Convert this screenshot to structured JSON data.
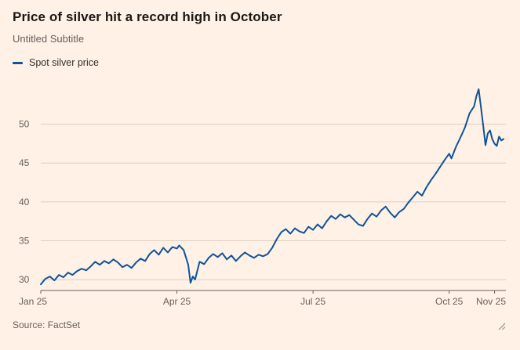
{
  "chart_data": {
    "type": "line",
    "title": "Price of silver hit a record high in October",
    "subtitle": "Untitled Subtitle",
    "source": "Source: FactSet",
    "xlabel": "",
    "ylabel": "",
    "grid": "horizontal",
    "legend_position": "top-left",
    "xlim": [
      0,
      10.25
    ],
    "ylim": [
      28.6,
      55.4
    ],
    "y_ticks": [
      30,
      35,
      40,
      45,
      50
    ],
    "x_ticks": [
      {
        "pos": 0,
        "label": "Jan 25"
      },
      {
        "pos": 3,
        "label": "Apr 25"
      },
      {
        "pos": 6,
        "label": "Jul 25"
      },
      {
        "pos": 9,
        "label": "Oct 25"
      },
      {
        "pos": 10,
        "label": "Nov 25"
      }
    ],
    "colors": {
      "background": "#FFF1E5",
      "grid": "#DCCEC0",
      "axis": "#66605C",
      "axis_text": "#66605C",
      "title_text": "#1A1817"
    },
    "series": [
      {
        "name": "Spot silver price",
        "color": "#0F5499",
        "x": [
          0.0,
          0.1,
          0.2,
          0.3,
          0.4,
          0.5,
          0.6,
          0.7,
          0.8,
          0.9,
          1.0,
          1.1,
          1.2,
          1.3,
          1.4,
          1.5,
          1.6,
          1.7,
          1.8,
          1.9,
          2.0,
          2.1,
          2.2,
          2.3,
          2.4,
          2.5,
          2.6,
          2.7,
          2.8,
          2.9,
          3.0,
          3.05,
          3.15,
          3.25,
          3.3,
          3.35,
          3.4,
          3.5,
          3.6,
          3.7,
          3.8,
          3.9,
          4.0,
          4.1,
          4.2,
          4.3,
          4.4,
          4.5,
          4.6,
          4.7,
          4.8,
          4.9,
          5.0,
          5.1,
          5.2,
          5.3,
          5.4,
          5.5,
          5.6,
          5.7,
          5.8,
          5.9,
          6.0,
          6.1,
          6.2,
          6.3,
          6.4,
          6.5,
          6.6,
          6.7,
          6.8,
          6.9,
          7.0,
          7.1,
          7.2,
          7.3,
          7.4,
          7.5,
          7.6,
          7.7,
          7.8,
          7.9,
          8.0,
          8.1,
          8.2,
          8.3,
          8.4,
          8.5,
          8.6,
          8.7,
          8.8,
          8.9,
          9.0,
          9.05,
          9.15,
          9.25,
          9.35,
          9.45,
          9.55,
          9.6,
          9.65,
          9.7,
          9.75,
          9.8,
          9.85,
          9.9,
          9.95,
          10.0,
          10.05,
          10.1,
          10.15,
          10.2
        ],
        "values": [
          29.4,
          30.1,
          30.4,
          29.9,
          30.6,
          30.3,
          30.9,
          30.6,
          31.1,
          31.4,
          31.2,
          31.7,
          32.3,
          31.9,
          32.4,
          32.1,
          32.6,
          32.2,
          31.6,
          31.9,
          31.5,
          32.2,
          32.7,
          32.4,
          33.3,
          33.8,
          33.2,
          34.1,
          33.5,
          34.2,
          34.0,
          34.4,
          33.8,
          31.9,
          29.6,
          30.4,
          30.0,
          32.3,
          32.0,
          32.8,
          33.3,
          32.9,
          33.4,
          32.6,
          33.1,
          32.4,
          33.0,
          33.5,
          33.1,
          32.8,
          33.2,
          33.0,
          33.3,
          34.1,
          35.2,
          36.1,
          36.5,
          35.9,
          36.6,
          36.2,
          36.0,
          36.8,
          36.4,
          37.1,
          36.6,
          37.5,
          38.2,
          37.8,
          38.4,
          38.0,
          38.3,
          37.7,
          37.1,
          36.9,
          37.8,
          38.5,
          38.1,
          38.9,
          39.4,
          38.6,
          38.0,
          38.7,
          39.1,
          39.9,
          40.6,
          41.3,
          40.8,
          41.9,
          42.8,
          43.6,
          44.5,
          45.4,
          46.2,
          45.6,
          47.1,
          48.3,
          49.6,
          51.4,
          52.3,
          53.6,
          54.5,
          52.2,
          49.8,
          47.3,
          48.8,
          49.2,
          48.1,
          47.5,
          47.2,
          48.4,
          47.9,
          48.1
        ]
      }
    ]
  }
}
